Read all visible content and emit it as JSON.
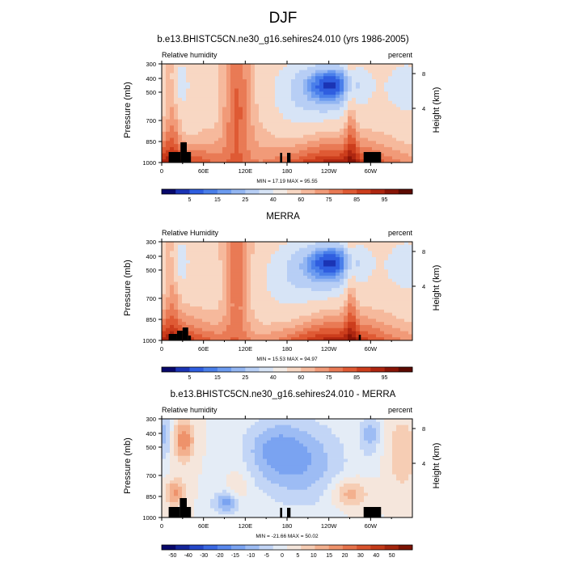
{
  "figure": {
    "season": "DJF",
    "colors": {
      "land": "#000000",
      "frame": "#000000"
    }
  },
  "chart_data": [
    {
      "type": "heatmap",
      "title": "b.e13.BHISTC5CN.ne30_g16.sehires24.010 (yrs 1986-2005)",
      "left_label": "Relative humidity",
      "units": "percent",
      "ylabel": "Pressure (mb)",
      "right_axis_label": "Height (km)",
      "y_ticks": [
        "300",
        "400",
        "500",
        "700",
        "850",
        "1000"
      ],
      "right_ticks": [
        "8",
        "4"
      ],
      "x_ticks": [
        "0",
        "60E",
        "120E",
        "180",
        "120W",
        "60W"
      ],
      "xlim": [
        0,
        360
      ],
      "ylim": [
        1000,
        300
      ],
      "min_max_label": "MIN = 17.19   MAX = 95.55",
      "colorbar_labels": [
        "5",
        "15",
        "25",
        "40",
        "60",
        "75",
        "85",
        "95"
      ],
      "colorbar_colors": [
        "#08086b",
        "#1b34b5",
        "#2f5ee0",
        "#4a7fea",
        "#6c9bf0",
        "#93b6f2",
        "#b7cef5",
        "#d7e4f6",
        "#f3ece7",
        "#f8d7c3",
        "#f6b99c",
        "#f19a78",
        "#e97a55",
        "#df5a34",
        "#cc3d1c",
        "#ae2610",
        "#881406",
        "#5c0a02"
      ]
    },
    {
      "type": "heatmap",
      "title": "MERRA",
      "left_label": "Relative Humidity",
      "units": "percent",
      "ylabel": "Pressure (mb)",
      "right_axis_label": "Height (km)",
      "y_ticks": [
        "300",
        "400",
        "500",
        "700",
        "850",
        "1000"
      ],
      "right_ticks": [
        "8",
        "4"
      ],
      "x_ticks": [
        "0",
        "60E",
        "120E",
        "180",
        "120W",
        "60W"
      ],
      "xlim": [
        0,
        360
      ],
      "ylim": [
        1000,
        300
      ],
      "min_max_label": "MIN = 15.53   MAX = 94.97",
      "colorbar_labels": [
        "5",
        "15",
        "25",
        "40",
        "60",
        "75",
        "85",
        "95"
      ],
      "colorbar_colors": [
        "#08086b",
        "#1b34b5",
        "#2f5ee0",
        "#4a7fea",
        "#6c9bf0",
        "#93b6f2",
        "#b7cef5",
        "#d7e4f6",
        "#f3ece7",
        "#f8d7c3",
        "#f6b99c",
        "#f19a78",
        "#e97a55",
        "#df5a34",
        "#cc3d1c",
        "#ae2610",
        "#881406",
        "#5c0a02"
      ]
    },
    {
      "type": "heatmap",
      "title": "b.e13.BHISTC5CN.ne30_g16.sehires24.010 - MERRA",
      "left_label": "Relative humidity",
      "units": "percent",
      "ylabel": "Pressure (mb)",
      "right_axis_label": "Height (km)",
      "y_ticks": [
        "300",
        "400",
        "500",
        "700",
        "850",
        "1000"
      ],
      "right_ticks": [
        "8",
        "4"
      ],
      "x_ticks": [
        "0",
        "60E",
        "120E",
        "180",
        "120W",
        "60W"
      ],
      "xlim": [
        0,
        360
      ],
      "ylim": [
        1000,
        300
      ],
      "min_max_label": "MIN = -21.66   MAX = 50.02",
      "colorbar_labels": [
        "-50",
        "-40",
        "-30",
        "-20",
        "-15",
        "-10",
        "-5",
        "0",
        "5",
        "10",
        "15",
        "20",
        "30",
        "40",
        "50"
      ],
      "colorbar_colors": [
        "#08086b",
        "#14259a",
        "#2447c8",
        "#3a68e2",
        "#5887ec",
        "#7aa3f1",
        "#9dbcf4",
        "#c2d5f6",
        "#e4ecf6",
        "#f5e6dc",
        "#f6cdb4",
        "#f3b08e",
        "#ee926b",
        "#e5724a",
        "#d8532d",
        "#c33a18",
        "#a4250c",
        "#7c1304"
      ]
    }
  ]
}
